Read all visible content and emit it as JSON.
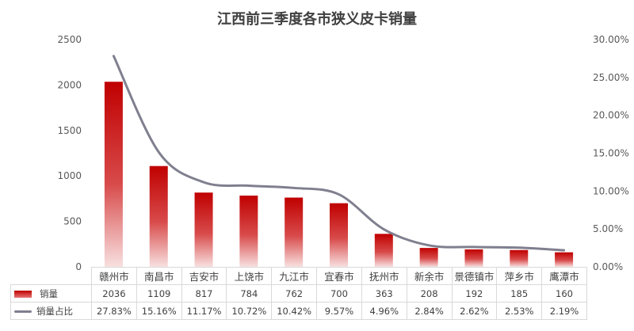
{
  "chart_data": {
    "type": "bar",
    "title": "江西前三季度各市狭义皮卡销量",
    "categories": [
      "赣州市",
      "南昌市",
      "吉安市",
      "上饶市",
      "九江市",
      "宜春市",
      "抚州市",
      "新余市",
      "景德镇市",
      "萍乡市",
      "鹰潭市"
    ],
    "series": [
      {
        "name": "销量",
        "kind": "bar",
        "axis": "left",
        "values": [
          2036,
          1109,
          817,
          784,
          762,
          700,
          363,
          208,
          192,
          185,
          160
        ],
        "labels": [
          "2036",
          "1109",
          "817",
          "784",
          "762",
          "700",
          "363",
          "208",
          "192",
          "185",
          "160"
        ],
        "color": "#c00000"
      },
      {
        "name": "销量占比",
        "kind": "line",
        "axis": "right",
        "values": [
          27.83,
          15.16,
          11.17,
          10.72,
          10.42,
          9.57,
          4.96,
          2.84,
          2.62,
          2.53,
          2.19
        ],
        "labels": [
          "27.83%",
          "15.16%",
          "11.17%",
          "10.72%",
          "10.42%",
          "9.57%",
          "4.96%",
          "2.84%",
          "2.62%",
          "2.53%",
          "2.19%"
        ],
        "color": "#7f7f8f"
      }
    ],
    "y_left": {
      "min": 0,
      "max": 2500,
      "ticks": [
        "0",
        "500",
        "1000",
        "1500",
        "2000",
        "2500"
      ]
    },
    "y_right": {
      "min": 0,
      "max": 30,
      "ticks": [
        "0.00%",
        "5.00%",
        "10.00%",
        "15.00%",
        "20.00%",
        "25.00%",
        "30.00%"
      ]
    },
    "grid": false,
    "legend": "data-table"
  }
}
